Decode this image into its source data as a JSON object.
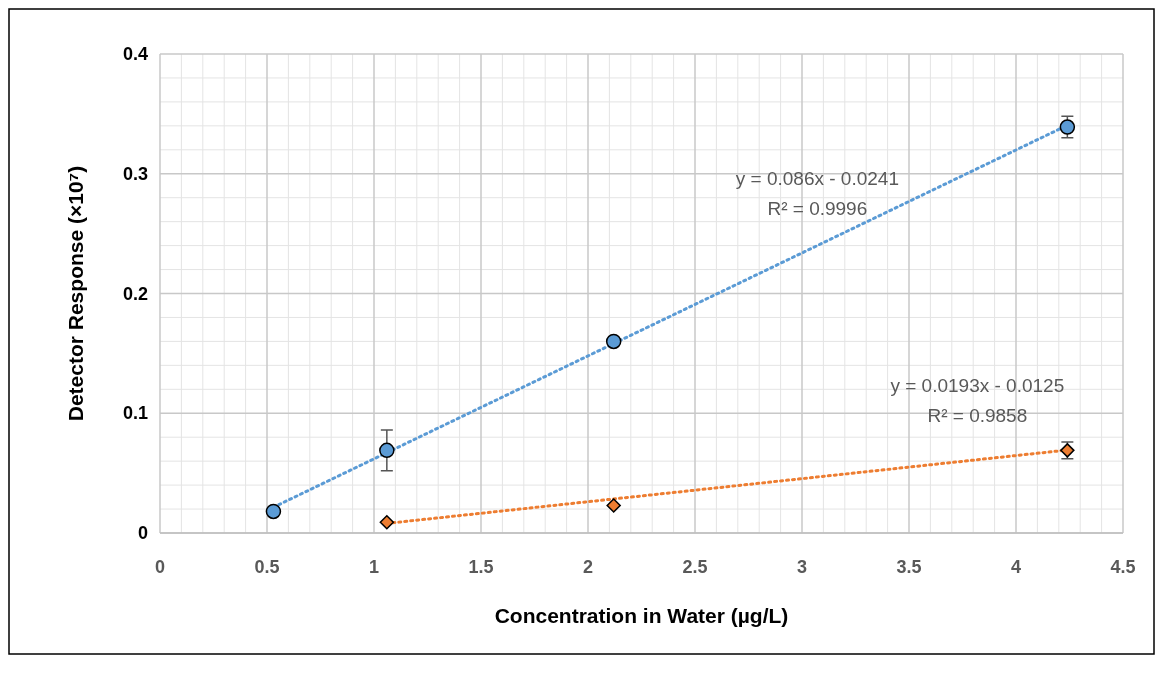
{
  "chart_data": {
    "type": "scatter",
    "xlabel": "Concentration in Water (µg/L)",
    "ylabel": "Detector Response (×10⁷)",
    "xlim": [
      0,
      4.5
    ],
    "xticks": [
      0,
      0.5,
      1,
      1.5,
      2,
      2.5,
      3,
      3.5,
      4,
      4.5
    ],
    "ylim": [
      0,
      0.4
    ],
    "yticks": [
      0,
      0.1,
      0.2,
      0.3,
      0.4
    ],
    "grid": true,
    "series": [
      {
        "color": "#5b9bd5",
        "marker": "circle",
        "x": [
          0.53,
          1.06,
          2.12,
          4.24
        ],
        "values": [
          0.018,
          0.069,
          0.16,
          0.339
        ],
        "errors": [
          null,
          0.017,
          null,
          0.009
        ]
      },
      {
        "color": "#ed7d31",
        "marker": "diamond",
        "x": [
          1.06,
          2.12,
          4.24
        ],
        "values": [
          0.009,
          0.023,
          0.069
        ],
        "errors": [
          null,
          null,
          0.007
        ]
      },
      {
        "type": "line",
        "color": "#5b9bd5",
        "line_style": "dotted",
        "x": [
          0.53,
          4.24
        ],
        "values": [
          0.0215,
          0.3405
        ]
      },
      {
        "type": "line",
        "color": "#ed7d31",
        "line_style": "dotted",
        "x": [
          1.06,
          4.24
        ],
        "values": [
          0.008,
          0.0693
        ]
      }
    ],
    "annotations": [
      "y = 0.086x - 0.0241",
      "R² = 0.9996",
      "y = 0.0193x - 0.0125",
      "R² = 0.9858"
    ]
  }
}
